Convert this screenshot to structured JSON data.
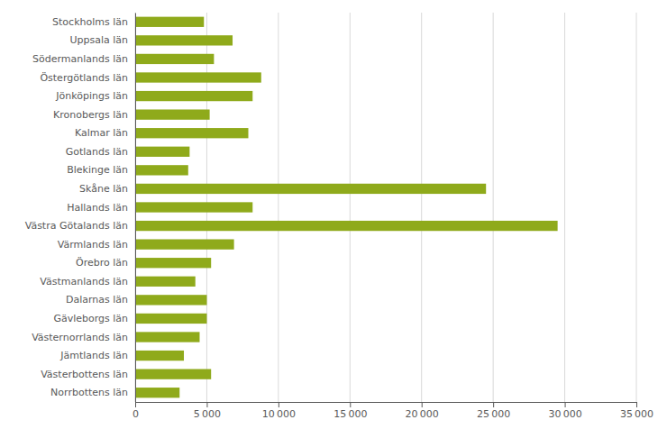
{
  "chart_data": {
    "type": "bar",
    "orientation": "horizontal",
    "categories": [
      "Stockholms län",
      "Uppsala län",
      "Södermanlands län",
      "Östergötlands län",
      "Jönköpings län",
      "Kronobergs län",
      "Kalmar län",
      "Gotlands län",
      "Blekinge län",
      "Skåne län",
      "Hallands län",
      "Västra Götalands län",
      "Värmlands län",
      "Örebro län",
      "Västmanlands län",
      "Dalarnas län",
      "Gävleborgs län",
      "Västernorrlands län",
      "Jämtlands län",
      "Västerbottens län",
      "Norrbottens län"
    ],
    "values": [
      4800,
      6800,
      5500,
      8800,
      8200,
      5200,
      7900,
      3800,
      3700,
      24500,
      8200,
      29500,
      6900,
      5300,
      4200,
      5000,
      5000,
      4500,
      3400,
      5300,
      3100
    ],
    "color": "#8faa1b",
    "xlim": [
      0,
      35000
    ],
    "xticks": [
      0,
      {
        "value": 5000,
        "label": "5 000"
      },
      {
        "value": 10000,
        "label": "10 000"
      },
      {
        "value": 15000,
        "label": "15 000"
      },
      {
        "value": 20000,
        "label": "20 000"
      },
      {
        "value": 25000,
        "label": "25 000"
      },
      {
        "value": 30000,
        "label": "30 000"
      },
      {
        "value": 35000,
        "label": "35 000"
      }
    ],
    "grid": true
  }
}
